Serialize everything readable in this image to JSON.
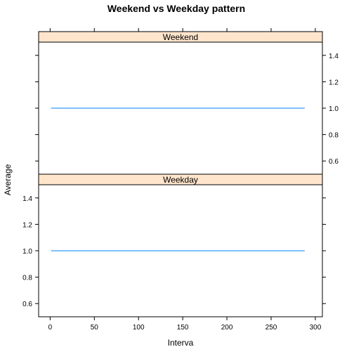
{
  "chart_data": {
    "type": "line",
    "title": "Weekend vs Weekday pattern",
    "xlabel": "Interva",
    "ylabel": "Average",
    "xlim": [
      -13,
      308
    ],
    "ylim": [
      0.5,
      1.5
    ],
    "x_ticks": [
      0,
      50,
      100,
      150,
      200,
      250,
      300
    ],
    "y_ticks": [
      0.6,
      0.8,
      1.0,
      1.2,
      1.4
    ],
    "y_tick_labels": [
      "0.6",
      "0.8",
      "1.0",
      "1.2",
      "1.4"
    ],
    "panels": [
      {
        "name": "Weekend",
        "x": [
          1,
          288
        ],
        "y": [
          1.0,
          1.0
        ]
      },
      {
        "name": "Weekday",
        "x": [
          1,
          288
        ],
        "y": [
          1.0,
          1.0
        ]
      }
    ],
    "line_color": "#0080ff",
    "strip_color": "#ffe5cc",
    "grid": false
  }
}
